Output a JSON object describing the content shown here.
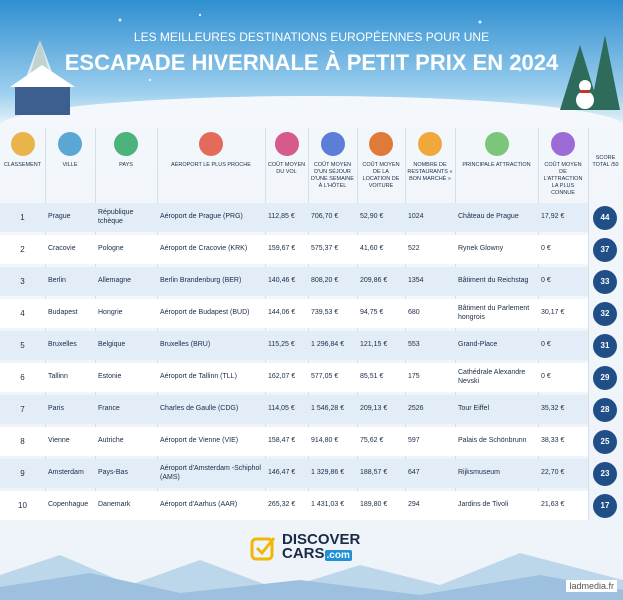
{
  "header": {
    "subtitle": "LES MEILLEURES DESTINATIONS EUROPÉENNES POUR UNE",
    "title": "ESCAPADE HIVERNALE À PETIT PRIX EN 2024"
  },
  "table": {
    "columns": [
      "CLASSEMENT",
      "VILLE",
      "PAYS",
      "AÉROPORT LE PLUS PROCHE",
      "COÛT MOYEN DU VOL",
      "COÛT MOYEN D'UN SÉJOUR D'UNE SEMAINE À L'HÔTEL",
      "COÛT MOYEN DE LA LOCATION DE VOITURE",
      "NOMBRE DE RESTAURANTS « BON MARCHÉ »",
      "PRINCIPALE ATTRACTION",
      "COÛT MOYEN DE L'ATTRACTION LA PLUS CONNUE",
      "SCORE TOTAL /50"
    ],
    "rows": [
      [
        1,
        "Prague",
        "République tchèque",
        "Aéroport de Prague (PRG)",
        "112,85 €",
        "706,70 €",
        "52,90 €",
        1024,
        "Château de Prague",
        "17,92 €",
        44
      ],
      [
        2,
        "Cracovie",
        "Pologne",
        "Aéroport de Cracovie (KRK)",
        "159,67 €",
        "575,37 €",
        "41,60 €",
        522,
        "Rynek Glowny",
        "0 €",
        37
      ],
      [
        3,
        "Berlin",
        "Allemagne",
        "Berlin Brandenburg (BER)",
        "140,46 €",
        "808,20 €",
        "209,86 €",
        1354,
        "Bâtiment du Reichstag",
        "0 €",
        33
      ],
      [
        4,
        "Budapest",
        "Hongrie",
        "Aéroport de Budapest (BUD)",
        "144,06 €",
        "739,53 €",
        "94,75 €",
        680,
        "Bâtiment du Parlement hongrois",
        "30,17 €",
        32
      ],
      [
        5,
        "Bruxelles",
        "Belgique",
        "Bruxelles (BRU)",
        "115,25 €",
        "1 296,84 €",
        "121,15 €",
        553,
        "Grand-Place",
        "0 €",
        31
      ],
      [
        6,
        "Tallinn",
        "Estonie",
        "Aéroport de Tallinn (TLL)",
        "162,07 €",
        "577,05 €",
        "85,51 €",
        175,
        "Cathédrale Alexandre Nevski",
        "0 €",
        29
      ],
      [
        7,
        "Paris",
        "France",
        "Charles de Gaulle (CDG)",
        "114,05 €",
        "1 546,28 €",
        "209,13 €",
        2526,
        "Tour Eiffel",
        "35,32 €",
        28
      ],
      [
        8,
        "Vienne",
        "Autriche",
        "Aéroport de Vienne (VIE)",
        "158,47 €",
        "914,80 €",
        "75,62 €",
        597,
        "Palais de Schönbrunn",
        "38,33 €",
        25
      ],
      [
        9,
        "Amsterdam",
        "Pays-Bas",
        "Aéroport d'Amsterdam -Schiphol (AMS)",
        "146,47 €",
        "1 329,86 €",
        "188,57 €",
        647,
        "Rijksmuseum",
        "22,70 €",
        23
      ],
      [
        10,
        "Copenhague",
        "Danemark",
        "Aéroport d'Aarhus (AAR)",
        "265,32 €",
        "1 431,03 €",
        "189,80 €",
        294,
        "Jardins de Tivoli",
        "21,63 €",
        17
      ]
    ]
  },
  "footer": {
    "brand": "DISCOVER",
    "brand2": "CARS",
    "domain": ".com",
    "watermark": "ladmedia.fr"
  }
}
